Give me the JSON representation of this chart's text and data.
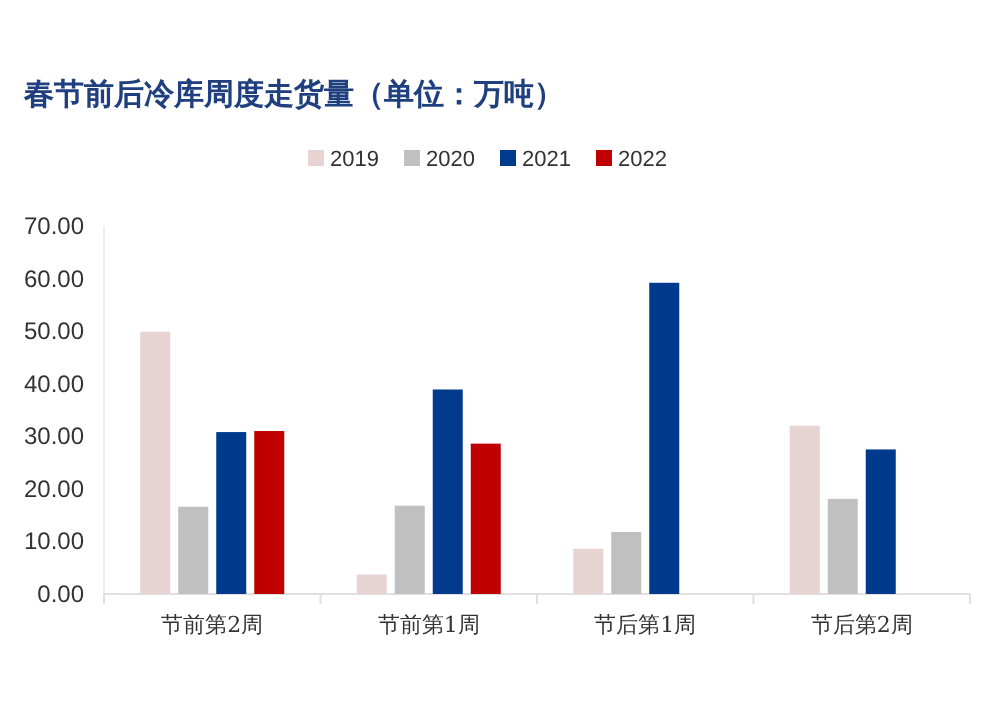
{
  "chart_data": {
    "type": "bar",
    "title": "春节前后冷库周度走货量（单位：万吨）",
    "categories": [
      "节前第2周",
      "节前第1周",
      "节后第1周",
      "节后第2周"
    ],
    "series": [
      {
        "name": "2019",
        "color": "#e8d3d3",
        "values": [
          49.9,
          3.7,
          8.6,
          32
        ]
      },
      {
        "name": "2020",
        "color": "#c0c0c0",
        "values": [
          16.6,
          16.8,
          11.8,
          18.1
        ]
      },
      {
        "name": "2021",
        "color": "#003a8c",
        "values": [
          30.8,
          38.9,
          59.2,
          27.5
        ]
      },
      {
        "name": "2022",
        "color": "#c00000",
        "values": [
          31,
          28.6,
          null,
          null
        ]
      }
    ],
    "ylim": [
      0,
      70
    ],
    "yticks": [
      {
        "value": 0,
        "label": "0.00"
      },
      {
        "value": 10,
        "label": "10.00"
      },
      {
        "value": 20,
        "label": "20.00"
      },
      {
        "value": 30,
        "label": "30.00"
      },
      {
        "value": 40,
        "label": "40.00"
      },
      {
        "value": 50,
        "label": "50.00"
      },
      {
        "value": 60,
        "label": "60.00"
      },
      {
        "value": 70,
        "label": "70.00"
      }
    ],
    "legend": "top",
    "grid": false
  }
}
